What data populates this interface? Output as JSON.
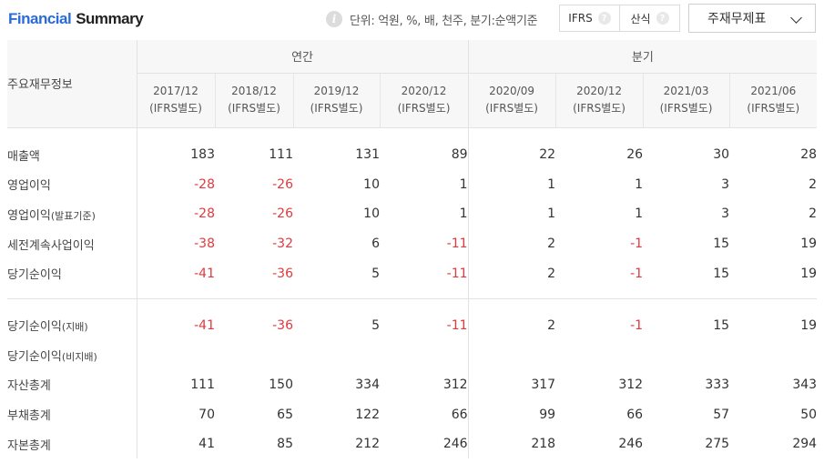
{
  "header": {
    "title_part1": "Financial",
    "title_part2": "Summary",
    "unit_text": "단위: 억원, %, 배, 천주, 분기:순액기준",
    "toggle_ifrs": "IFRS",
    "toggle_sansik": "산식",
    "select_value": "주재무제표"
  },
  "table": {
    "row_header_label": "주요재무정보",
    "group_annual": "연간",
    "group_quarterly": "분기",
    "columns": [
      {
        "period": "2017/12",
        "basis": "(IFRS별도)"
      },
      {
        "period": "2018/12",
        "basis": "(IFRS별도)"
      },
      {
        "period": "2019/12",
        "basis": "(IFRS별도)"
      },
      {
        "period": "2020/12",
        "basis": "(IFRS별도)"
      },
      {
        "period": "2020/09",
        "basis": "(IFRS별도)"
      },
      {
        "period": "2020/12",
        "basis": "(IFRS별도)"
      },
      {
        "period": "2021/03",
        "basis": "(IFRS별도)"
      },
      {
        "period": "2021/06",
        "basis": "(IFRS별도)"
      }
    ],
    "rows": [
      {
        "main": "매출액",
        "sub": "",
        "values": [
          "183",
          "111",
          "131",
          "89",
          "22",
          "26",
          "30",
          "28"
        ]
      },
      {
        "main": "영업이익",
        "sub": "",
        "values": [
          "-28",
          "-26",
          "10",
          "1",
          "1",
          "1",
          "3",
          "2"
        ]
      },
      {
        "main": "영업이익",
        "sub": "(발표기준)",
        "values": [
          "-28",
          "-26",
          "10",
          "1",
          "1",
          "1",
          "3",
          "2"
        ]
      },
      {
        "main": "세전계속사업이익",
        "sub": "",
        "values": [
          "-38",
          "-32",
          "6",
          "-11",
          "2",
          "-1",
          "15",
          "19"
        ]
      },
      {
        "main": "당기순이익",
        "sub": "",
        "values": [
          "-41",
          "-36",
          "5",
          "-11",
          "2",
          "-1",
          "15",
          "19"
        ]
      },
      {
        "main": "당기순이익",
        "sub": "(지배)",
        "values": [
          "-41",
          "-36",
          "5",
          "-11",
          "2",
          "-1",
          "15",
          "19"
        ]
      },
      {
        "main": "당기순이익",
        "sub": "(비지배)",
        "values": [
          "",
          "",
          "",
          "",
          "",
          "",
          "",
          ""
        ]
      },
      {
        "main": "자산총계",
        "sub": "",
        "values": [
          "111",
          "150",
          "334",
          "312",
          "317",
          "312",
          "333",
          "343"
        ]
      },
      {
        "main": "부채총계",
        "sub": "",
        "values": [
          "70",
          "65",
          "122",
          "66",
          "99",
          "66",
          "57",
          "50"
        ]
      },
      {
        "main": "자본총계",
        "sub": "",
        "values": [
          "41",
          "85",
          "212",
          "246",
          "218",
          "246",
          "275",
          "294"
        ]
      }
    ]
  },
  "colors": {
    "title_accent": "#2b6bd8",
    "negative": "#e0393e",
    "header_bg": "#f7f7f7",
    "border": "#e2e2e2"
  },
  "icons": {
    "info": "info-icon",
    "help": "question-icon",
    "dropdown": "chevron-down-icon"
  }
}
